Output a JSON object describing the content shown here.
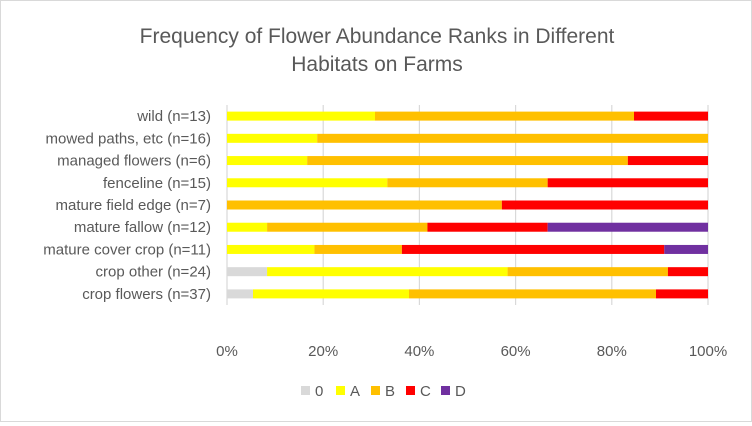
{
  "chart_data": {
    "type": "bar",
    "orientation": "horizontal",
    "stacked": "percent",
    "title": "Frequency of Flower Abundance Ranks in Different Habitats on Farms",
    "title_lines": [
      "Frequency of Flower Abundance Ranks in Different",
      "Habitats on Farms"
    ],
    "xlabel": "",
    "ylabel": "",
    "xlim": [
      0,
      100
    ],
    "x_ticks": [
      "0%",
      "20%",
      "40%",
      "60%",
      "80%",
      "100%"
    ],
    "grid": "vertical",
    "legend_position": "bottom",
    "categories": [
      "wild (n=13)",
      "mowed paths, etc (n=16)",
      "managed flowers (n=6)",
      "fenceline (n=15)",
      "mature field edge (n=7)",
      "mature fallow (n=12)",
      "mature cover crop (n=11)",
      "crop other (n=24)",
      "crop flowers (n=37)"
    ],
    "series": [
      {
        "name": "0",
        "color": "#d9d9d9",
        "values": [
          0,
          0,
          0,
          0,
          0,
          0,
          0,
          2,
          2
        ]
      },
      {
        "name": "A",
        "color": "#ffff00",
        "values": [
          4,
          3,
          1,
          5,
          0,
          1,
          2,
          12,
          12
        ]
      },
      {
        "name": "B",
        "color": "#ffc000",
        "values": [
          7,
          13,
          4,
          5,
          4,
          4,
          2,
          8,
          19
        ]
      },
      {
        "name": "C",
        "color": "#ff0000",
        "values": [
          2,
          0,
          1,
          5,
          3,
          3,
          6,
          2,
          4
        ]
      },
      {
        "name": "D",
        "color": "#7030a0",
        "values": [
          0,
          0,
          0,
          0,
          0,
          4,
          1,
          0,
          0
        ]
      }
    ]
  }
}
